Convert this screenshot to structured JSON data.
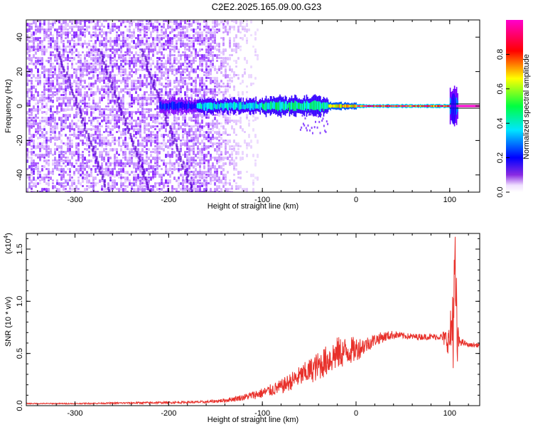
{
  "title": "C2E2.2025.165.09.00.G23",
  "chart_data": [
    {
      "type": "heatmap",
      "title": "C2E2.2025.165.09.00.G23",
      "xlabel": "Height of straight line (km)",
      "ylabel": "Frequency (Hz)",
      "xlim": [
        -352,
        132
      ],
      "ylim": [
        -50,
        50
      ],
      "x_ticks": [
        -300,
        -200,
        -100,
        0,
        100
      ],
      "x_tick_labels": [
        "-300",
        "-200",
        "-100",
        "0",
        "100"
      ],
      "y_ticks": [
        -40,
        -20,
        0,
        20,
        40
      ],
      "y_tick_labels": [
        "-40",
        "-20",
        "0",
        "20",
        "40"
      ],
      "colorbar": {
        "label": "Normalized spectral amplitude",
        "range": [
          0.0,
          1.0
        ],
        "ticks": [
          0.0,
          0.2,
          0.4,
          0.6,
          0.8
        ],
        "tick_labels": [
          "0.0",
          "0.2",
          "0.4",
          "0.6",
          "0.8"
        ],
        "colormap": [
          "#ffffff",
          "#7f00ff",
          "#0000ff",
          "#00ffff",
          "#00ff00",
          "#ffff00",
          "#ff0000",
          "#ff00cc"
        ]
      },
      "noise_region": {
        "x_from": -352,
        "x_to": -105,
        "amplitude": 0.15
      },
      "signal_band": {
        "center_freq": 0,
        "segments": [
          {
            "x_from": -210,
            "x_to": -170,
            "half_width_hz": 4,
            "amplitude": 0.3
          },
          {
            "x_from": -170,
            "x_to": -100,
            "half_width_hz": 4,
            "amplitude": 0.45
          },
          {
            "x_from": -100,
            "x_to": -30,
            "half_width_hz": 5,
            "amplitude": 0.5
          },
          {
            "x_from": -30,
            "x_to": 0,
            "half_width_hz": 2,
            "amplitude": 0.75
          },
          {
            "x_from": 0,
            "x_to": 100,
            "half_width_hz": 1,
            "amplitude": 0.9
          },
          {
            "x_from": 100,
            "x_to": 108,
            "half_width_hz": 10,
            "amplitude": 0.35
          }
        ]
      }
    },
    {
      "type": "line",
      "xlabel": "Height of straight line (km)",
      "ylabel": "SNR (10 * v/v)",
      "y_multiplier_label": "(x10",
      "y_multiplier_exp": "4",
      "xlim": [
        -352,
        132
      ],
      "ylim": [
        0,
        1.65
      ],
      "x_ticks": [
        -300,
        -200,
        -100,
        0,
        100
      ],
      "x_tick_labels": [
        "-300",
        "-200",
        "-100",
        "0",
        "100"
      ],
      "y_ticks": [
        0.0,
        0.5,
        1.0,
        1.5
      ],
      "y_tick_labels": [
        "0.0",
        "0.5",
        "1.0",
        "1.5"
      ],
      "series": [
        {
          "color": "#e8302a",
          "x": [
            -352,
            -300,
            -250,
            -200,
            -160,
            -140,
            -120,
            -100,
            -80,
            -60,
            -40,
            -20,
            0,
            10,
            20,
            30,
            40,
            50,
            60,
            70,
            80,
            90,
            100,
            104,
            106,
            108,
            110,
            120,
            132
          ],
          "y": [
            0.02,
            0.02,
            0.025,
            0.03,
            0.035,
            0.05,
            0.08,
            0.12,
            0.18,
            0.28,
            0.38,
            0.5,
            0.54,
            0.58,
            0.63,
            0.66,
            0.68,
            0.67,
            0.66,
            0.66,
            0.66,
            0.66,
            0.62,
            0.9,
            1.2,
            0.6,
            0.62,
            0.58,
            0.58
          ],
          "noise": [
            0.005,
            0.005,
            0.008,
            0.01,
            0.012,
            0.02,
            0.03,
            0.05,
            0.07,
            0.1,
            0.14,
            0.16,
            0.12,
            0.08,
            0.06,
            0.05,
            0.04,
            0.03,
            0.03,
            0.03,
            0.03,
            0.03,
            0.15,
            0.55,
            0.5,
            0.35,
            0.04,
            0.02,
            0.02
          ]
        }
      ]
    }
  ]
}
